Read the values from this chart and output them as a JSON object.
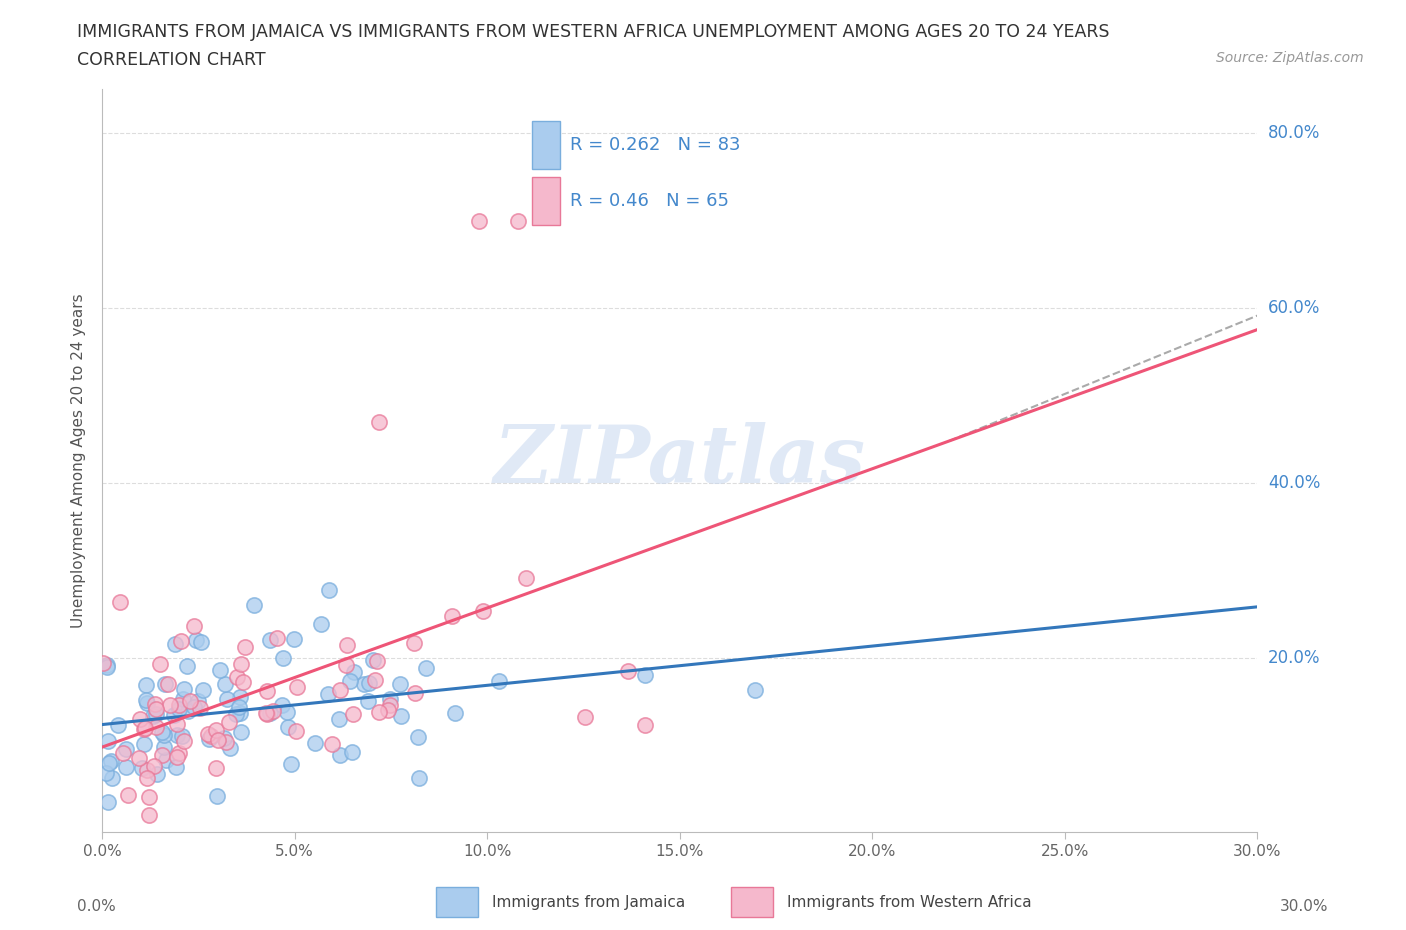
{
  "title_line1": "IMMIGRANTS FROM JAMAICA VS IMMIGRANTS FROM WESTERN AFRICA UNEMPLOYMENT AMONG AGES 20 TO 24 YEARS",
  "title_line2": "CORRELATION CHART",
  "source_text": "Source: ZipAtlas.com",
  "ylabel": "Unemployment Among Ages 20 to 24 years",
  "xlim": [
    0.0,
    0.3
  ],
  "ylim": [
    0.0,
    0.85
  ],
  "xtick_values": [
    0.0,
    0.05,
    0.1,
    0.15,
    0.2,
    0.25,
    0.3
  ],
  "xtick_labels": [
    "0.0%",
    "5.0%",
    "10.0%",
    "15.0%",
    "20.0%",
    "25.0%",
    "30.0%"
  ],
  "ytick_values": [
    0.2,
    0.4,
    0.6,
    0.8
  ],
  "ytick_labels": [
    "20.0%",
    "40.0%",
    "60.0%",
    "80.0%"
  ],
  "jamaica_color": "#aaccee",
  "jamaica_edge_color": "#7aaedd",
  "western_africa_color": "#f5b8cc",
  "western_africa_edge_color": "#e87898",
  "jamaica_line_color": "#3377bb",
  "western_africa_line_color": "#ee5577",
  "jamaica_R": 0.262,
  "jamaica_N": 83,
  "western_africa_R": 0.46,
  "western_africa_N": 65,
  "watermark_text": "ZIPatlas",
  "grid_color": "#dddddd",
  "background_color": "#ffffff",
  "legend_label_jamaica": "Immigrants from Jamaica",
  "legend_label_western_africa": "Immigrants from Western Africa",
  "right_label_color": "#4488cc",
  "title_color": "#333333",
  "source_color": "#999999",
  "axis_label_color": "#555555"
}
